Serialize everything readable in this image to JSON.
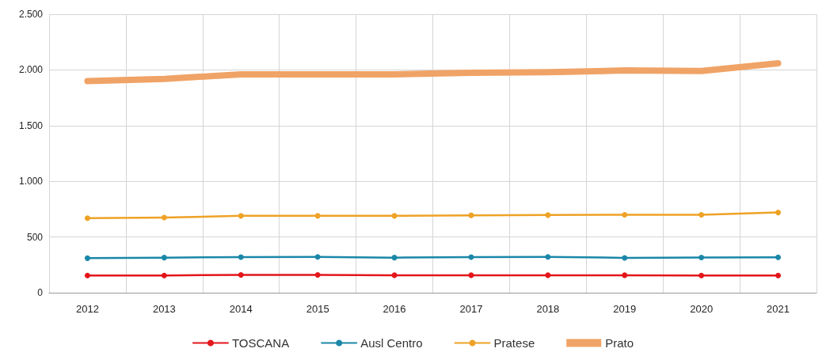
{
  "chart_data": {
    "type": "line",
    "categories": [
      "2012",
      "2013",
      "2014",
      "2015",
      "2016",
      "2017",
      "2018",
      "2019",
      "2020",
      "2021"
    ],
    "series": [
      {
        "name": "TOSCANA",
        "color": "#e3161b",
        "marker": "circle",
        "values": [
          155,
          155,
          160,
          160,
          157,
          157,
          157,
          157,
          155,
          155
        ]
      },
      {
        "name": "Ausl Centro",
        "color": "#1a87a8",
        "marker": "circle",
        "values": [
          310,
          315,
          320,
          322,
          315,
          320,
          322,
          313,
          316,
          318
        ]
      },
      {
        "name": "Pratese",
        "color": "#eea226",
        "marker": "circle",
        "values": [
          670,
          675,
          690,
          690,
          690,
          695,
          697,
          700,
          700,
          720
        ]
      },
      {
        "name": "Prato",
        "color": "#f0a366",
        "marker": "none",
        "values": [
          1900,
          1920,
          1960,
          1960,
          1960,
          1975,
          1980,
          1995,
          1990,
          2060
        ]
      }
    ],
    "ylim": [
      0,
      2500
    ],
    "yticks": [
      0,
      500,
      {
        "value": 1000,
        "label": "1.000"
      },
      {
        "value": 1500,
        "label": "1.500"
      },
      {
        "value": 2000,
        "label": "2.000"
      },
      {
        "value": 2500,
        "label": "2.500"
      }
    ],
    "grid": true,
    "legend": "bottom"
  }
}
